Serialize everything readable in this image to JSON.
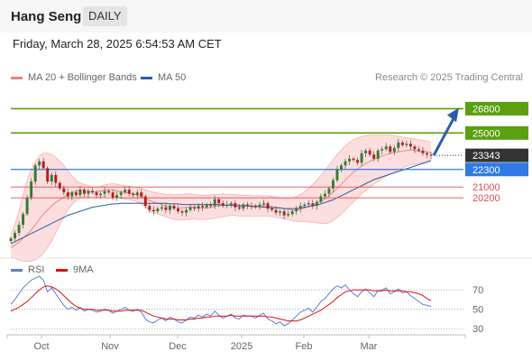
{
  "header": {
    "title": "Hang Seng",
    "timeframe": "DAILY"
  },
  "timestamp": "Friday, March 28, 2025 6:54:53 AM CET",
  "legend": {
    "bollinger": {
      "label": "MA 20 + Bollinger Bands",
      "color": "#f08080"
    },
    "ma50": {
      "label": "MA 50",
      "color": "#2a5ea8"
    }
  },
  "credit": "Research © 2025 Trading Central",
  "rsi_legend": {
    "rsi": {
      "label": "RSI",
      "color": "#5b7fd6"
    },
    "ma9": {
      "label": "9MA",
      "color": "#e01010"
    }
  },
  "colors": {
    "resistance": "#5aa010",
    "pivot": "#2f7ae5",
    "support": "#e84c4c",
    "current": "#333333",
    "arrow": "#2a5ea8",
    "candle_up": "#2e7d32",
    "candle_down": "#b71c1c",
    "band_fill": "#fdd6d6"
  },
  "chart_data": [
    {
      "type": "candlestick",
      "title": "Hang Seng",
      "timeframe": "DAILY",
      "ylim": [
        16000,
        28500
      ],
      "x_labels": [
        "Oct",
        "Nov",
        "Dec",
        "2025",
        "Feb",
        "Mar"
      ],
      "current_price": 23343,
      "levels": [
        {
          "value": 26800,
          "label": "26800",
          "kind": "resistance"
        },
        {
          "value": 25000,
          "label": "25000",
          "kind": "resistance"
        },
        {
          "value": 22300,
          "label": "22300",
          "kind": "pivot"
        },
        {
          "value": 21000,
          "label": "21000",
          "kind": "support"
        },
        {
          "value": 20200,
          "label": "20200",
          "kind": "support"
        }
      ],
      "target_arrow": {
        "from": 23343,
        "to": 26800
      },
      "closes": [
        17200,
        17600,
        18200,
        19000,
        20200,
        21400,
        22600,
        22900,
        22400,
        21400,
        21900,
        21300,
        20900,
        20600,
        20300,
        20600,
        20400,
        20800,
        20500,
        20700,
        20600,
        20400,
        20500,
        20700,
        20600,
        20200,
        20400,
        20600,
        20800,
        20500,
        20400,
        20600,
        20300,
        19600,
        19300,
        19200,
        19400,
        19500,
        19300,
        19600,
        19400,
        19200,
        19100,
        19300,
        19500,
        19400,
        19600,
        19500,
        19700,
        19600,
        20100,
        19800,
        19600,
        19700,
        19800,
        19500,
        19400,
        19700,
        19600,
        19600,
        19500,
        19700,
        19800,
        19400,
        19300,
        19100,
        19200,
        18900,
        19000,
        19200,
        19400,
        19600,
        19700,
        19800,
        19600,
        19900,
        20300,
        20500,
        20900,
        21500,
        22300,
        22600,
        22900,
        23100,
        23000,
        22800,
        23500,
        23700,
        23400,
        23100,
        23700,
        23800,
        24000,
        23600,
        23900,
        24300,
        24100,
        24200,
        24000,
        23800,
        23700,
        23500,
        23400,
        23343
      ],
      "ma20": [
        16500,
        16700,
        16900,
        17200,
        17500,
        17800,
        18200,
        18600,
        19000,
        19300,
        19600,
        19850,
        20050,
        20250,
        20450,
        20600,
        20700,
        20750,
        20750,
        20700,
        20650,
        20650,
        20700,
        20750,
        20800,
        20800,
        20700,
        20650,
        20600,
        20550,
        20500,
        20400,
        20300,
        20150,
        20000,
        19900,
        19800,
        19700,
        19600,
        19550,
        19500,
        19450,
        19450,
        19500,
        19500,
        19500,
        19450,
        19450,
        19450,
        19500,
        19550,
        19600,
        19650,
        19650,
        19700,
        19700,
        19650,
        19650,
        19650,
        19600,
        19600,
        19600,
        19600,
        19600,
        19550,
        19500,
        19450,
        19400,
        19350,
        19300,
        19300,
        19350,
        19450,
        19550,
        19650,
        19800,
        19950,
        20100,
        20350,
        20600,
        20900,
        21200,
        21500,
        21800,
        22100,
        22350,
        22550,
        22750,
        22900,
        23050,
        23150,
        23300,
        23400,
        23500,
        23550,
        23600,
        23650,
        23700,
        23750,
        23700,
        23650,
        23650,
        23600,
        23550
      ],
      "bb_upper": [
        17500,
        18200,
        19200,
        20400,
        21500,
        22300,
        22900,
        23300,
        23500,
        23500,
        23400,
        23200,
        22900,
        22600,
        22200,
        21800,
        21500,
        21300,
        21200,
        21100,
        21000,
        21000,
        21050,
        21150,
        21200,
        21250,
        21200,
        21150,
        21100,
        21050,
        21000,
        20950,
        20900,
        20800,
        20700,
        20600,
        20550,
        20500,
        20450,
        20450,
        20450,
        20450,
        20450,
        20500,
        20500,
        20450,
        20400,
        20400,
        20400,
        20400,
        20450,
        20450,
        20500,
        20450,
        20450,
        20450,
        20400,
        20400,
        20400,
        20350,
        20350,
        20350,
        20350,
        20350,
        20300,
        20250,
        20200,
        20150,
        20150,
        20200,
        20300,
        20450,
        20650,
        20900,
        21200,
        21500,
        21850,
        22200,
        22600,
        23000,
        23400,
        23750,
        24050,
        24300,
        24500,
        24650,
        24750,
        24800,
        24850,
        24850,
        24850,
        24850,
        24850,
        24850,
        24800,
        24750,
        24700,
        24650,
        24600,
        24550,
        24500,
        24450,
        24400,
        24300
      ],
      "bb_lower": [
        15800,
        15700,
        15600,
        15500,
        15500,
        15500,
        15600,
        15800,
        16100,
        16500,
        17000,
        17600,
        18200,
        18800,
        19300,
        19700,
        20000,
        20200,
        20300,
        20250,
        20200,
        20250,
        20300,
        20300,
        20350,
        20350,
        20250,
        20150,
        20100,
        20050,
        20000,
        19900,
        19750,
        19500,
        19250,
        19100,
        19000,
        18900,
        18800,
        18700,
        18600,
        18550,
        18550,
        18600,
        18600,
        18650,
        18600,
        18600,
        18600,
        18650,
        18700,
        18750,
        18800,
        18850,
        18900,
        18900,
        18850,
        18850,
        18850,
        18850,
        18850,
        18850,
        18850,
        18850,
        18800,
        18750,
        18700,
        18650,
        18600,
        18500,
        18450,
        18450,
        18450,
        18400,
        18400,
        18350,
        18300,
        18300,
        18350,
        18500,
        18750,
        19000,
        19300,
        19600,
        19900,
        20200,
        20500,
        20750,
        21000,
        21200,
        21400,
        21600,
        21800,
        21950,
        22100,
        22250,
        22400,
        22550,
        22650,
        22700,
        22750,
        22800,
        22850,
        22900
      ],
      "ma50": [
        16800,
        16950,
        17100,
        17250,
        17400,
        17550,
        17700,
        17850,
        18000,
        18150,
        18300,
        18450,
        18600,
        18750,
        18900,
        19000,
        19100,
        19200,
        19300,
        19400,
        19500,
        19550,
        19600,
        19650,
        19700,
        19750,
        19750,
        19800,
        19800,
        19800,
        19800,
        19800,
        19800,
        19800,
        19800,
        19800,
        19800,
        19800,
        19800,
        19750,
        19750,
        19750,
        19700,
        19700,
        19700,
        19700,
        19700,
        19700,
        19700,
        19700,
        19700,
        19700,
        19650,
        19650,
        19650,
        19600,
        19600,
        19600,
        19600,
        19550,
        19550,
        19550,
        19500,
        19500,
        19450,
        19450,
        19450,
        19400,
        19400,
        19400,
        19400,
        19450,
        19500,
        19550,
        19600,
        19650,
        19750,
        19850,
        19950,
        20050,
        20200,
        20350,
        20500,
        20650,
        20800,
        20950,
        21100,
        21250,
        21400,
        21550,
        21650,
        21750,
        21850,
        21950,
        22050,
        22150,
        22250,
        22350,
        22450,
        22550,
        22650,
        22750,
        22850,
        22950
      ]
    },
    {
      "type": "line",
      "title": "",
      "ylim": [
        20,
        85
      ],
      "yticks": [
        70,
        50,
        30
      ],
      "series": [
        {
          "name": "RSI",
          "values": [
            55,
            60,
            66,
            72,
            76,
            80,
            82,
            84,
            80,
            68,
            72,
            66,
            60,
            54,
            50,
            52,
            49,
            52,
            48,
            50,
            49,
            47,
            48,
            50,
            49,
            46,
            48,
            50,
            52,
            49,
            48,
            50,
            47,
            40,
            37,
            36,
            39,
            41,
            38,
            42,
            40,
            37,
            36,
            39,
            42,
            41,
            44,
            42,
            45,
            43,
            48,
            44,
            41,
            43,
            45,
            41,
            40,
            44,
            43,
            43,
            41,
            44,
            46,
            40,
            38,
            35,
            37,
            33,
            35,
            39,
            43,
            47,
            49,
            51,
            47,
            52,
            58,
            61,
            66,
            71,
            74,
            72,
            75,
            70,
            66,
            63,
            68,
            71,
            67,
            63,
            69,
            70,
            72,
            66,
            68,
            71,
            67,
            68,
            64,
            61,
            58,
            55,
            54,
            53
          ]
        },
        {
          "name": "9MA",
          "values": [
            48,
            50,
            52,
            55,
            58,
            62,
            66,
            70,
            73,
            74,
            73,
            71,
            68,
            64,
            60,
            56,
            53,
            51,
            50,
            50,
            50,
            49,
            49,
            49,
            49,
            48,
            48,
            48,
            49,
            49,
            49,
            49,
            49,
            47,
            45,
            43,
            42,
            41,
            40,
            40,
            40,
            39,
            39,
            39,
            40,
            40,
            41,
            41,
            42,
            42,
            43,
            43,
            43,
            43,
            44,
            43,
            43,
            43,
            43,
            43,
            43,
            43,
            43,
            42,
            42,
            41,
            40,
            39,
            38,
            38,
            38,
            39,
            41,
            43,
            45,
            47,
            49,
            52,
            55,
            58,
            62,
            65,
            68,
            69,
            70,
            70,
            70,
            70,
            70,
            69,
            69,
            69,
            70,
            69,
            69,
            69,
            69,
            68,
            68,
            67,
            66,
            64,
            61,
            59
          ]
        }
      ]
    }
  ]
}
